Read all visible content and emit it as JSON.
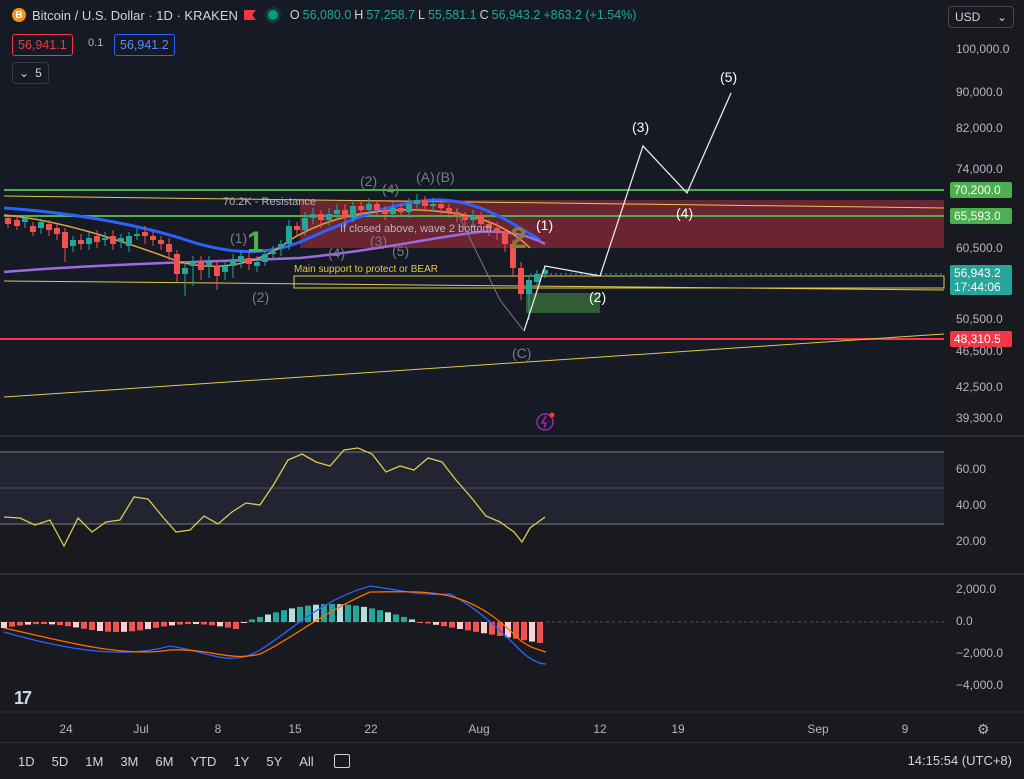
{
  "header": {
    "title": "Bitcoin / U.S. Dollar · 1D · KRAKEN",
    "open_label": "O",
    "open": "56,080.0",
    "high_label": "H",
    "high": "57,258.7",
    "low_label": "L",
    "low": "55,581.1",
    "close_label": "C",
    "close": "56,943.2",
    "change": "+863.2 (+1.54%)"
  },
  "trade": {
    "sell": "56,941.1",
    "spread": "0.1",
    "buy": "56,941.2"
  },
  "indicators_toggle": {
    "count": "5"
  },
  "currency": {
    "label": "USD"
  },
  "price_axis": {
    "ticks": [
      "100,000.0",
      "90,000.0",
      "82,000.0",
      "74,000.0",
      "60,500.0",
      "50,500.0",
      "46,500.0",
      "42,500.0",
      "39,300.0"
    ],
    "badges": [
      {
        "text": "70,200.0",
        "color": "#4caf50"
      },
      {
        "text": "65,593.0",
        "color": "#4caf50"
      },
      {
        "text": "56,943.2",
        "color": "#26a69a"
      },
      {
        "text": "17:44:06",
        "color": "#26a69a"
      },
      {
        "text": "48,310.5",
        "color": "#f23645"
      }
    ]
  },
  "rsi_axis": {
    "ticks": [
      "60.00",
      "40.00",
      "20.00"
    ]
  },
  "macd_axis": {
    "ticks": [
      "2,000.0",
      "0.0",
      "−2,000.0",
      "−4,000.0"
    ]
  },
  "time_axis": {
    "ticks": [
      "24",
      "Jul",
      "8",
      "15",
      "22",
      "Aug",
      "12",
      "19",
      "Sep",
      "9"
    ]
  },
  "annotations": {
    "resistance": "70.2K - Resistance",
    "wave2_note": "If closed above, wave 2 bottom",
    "main_support": "Main support to protect or BEAR",
    "wave1_big": "1",
    "wave2_big": "2",
    "w1_paren": "(1)",
    "w2_paren": "(2)",
    "w3_paren": "(3)",
    "w4_paren": "(4)",
    "w5_paren": "(5)",
    "wA": "(A)",
    "wB": "(B)",
    "wC": "(C)",
    "proj1": "(1)",
    "proj2": "(2)",
    "proj3": "(3)",
    "proj4": "(4)",
    "proj5": "(5)"
  },
  "timeframes": [
    "1D",
    "5D",
    "1M",
    "3M",
    "6M",
    "YTD",
    "1Y",
    "5Y",
    "All"
  ],
  "clock": "14:15:54 (UTC+8)",
  "colors": {
    "up": "#26a69a",
    "down": "#ef5350",
    "resistance_zone": "#b2303b",
    "support_zone": "#3c7a3c"
  }
}
